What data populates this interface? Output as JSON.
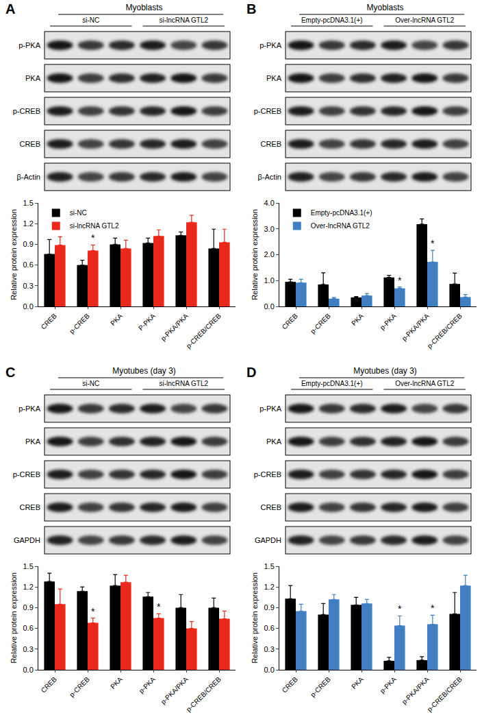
{
  "chart_data": [
    {
      "panel": "A",
      "type": "bar",
      "blot": {
        "header": "Myoblasts",
        "groups": [
          "si-NC",
          "si-lncRNA GTL2"
        ],
        "rows": [
          "p-PKA",
          "PKA",
          "p-CREB",
          "CREB",
          "β-Actin"
        ]
      },
      "y_label": "Relative protein expression",
      "categories": [
        "CREB",
        "p-CREB",
        "PKA",
        "P-PKA",
        "p-PKA/PKA",
        "p-CREB/CREB"
      ],
      "series": [
        {
          "name": "si-NC",
          "color": "#000000",
          "values": [
            0.76,
            0.6,
            0.9,
            0.92,
            1.03,
            0.84
          ],
          "errors": [
            0.21,
            0.07,
            0.09,
            0.07,
            0.05,
            0.28
          ],
          "marks": [
            null,
            null,
            null,
            null,
            null,
            null
          ]
        },
        {
          "name": "si-lncRNA GTL2",
          "color": "#e8291c",
          "values": [
            0.89,
            0.81,
            0.84,
            1.02,
            1.22,
            0.93
          ],
          "errors": [
            0.12,
            0.08,
            0.12,
            0.09,
            0.1,
            0.19
          ],
          "marks": [
            null,
            "*",
            null,
            null,
            null,
            null
          ]
        }
      ],
      "ylim": [
        0,
        1.5
      ],
      "yticks": [
        {
          "value": 0,
          "label": "0.0"
        },
        0.3,
        0.6,
        0.9,
        1.2,
        1.5
      ],
      "grid": false,
      "legend": "upper left"
    },
    {
      "panel": "B",
      "type": "bar",
      "blot": {
        "header": "Myoblasts",
        "groups": [
          "Empty-pcDNA3.1(+)",
          "Over-lncRNA GTL2"
        ],
        "rows": [
          "p-PKA",
          "PKA",
          "p-CREB",
          "CREB",
          "β-Actin"
        ]
      },
      "y_label": "Relative protein expression",
      "categories": [
        "CREB",
        "p-CREB",
        "PKA",
        "p-PKA",
        "p-PKA/PKA",
        "p-CREB/CREB"
      ],
      "series": [
        {
          "name": "Empty-pcDNA3.1(+)",
          "color": "#000000",
          "values": [
            0.95,
            0.85,
            0.35,
            1.12,
            3.18,
            0.87
          ],
          "errors": [
            0.1,
            0.45,
            0.03,
            0.08,
            0.2,
            0.42
          ],
          "marks": [
            null,
            null,
            null,
            null,
            null,
            null
          ]
        },
        {
          "name": "Over-lncRNA GTL2",
          "color": "#3f7ec1",
          "values": [
            0.92,
            0.3,
            0.42,
            0.7,
            1.72,
            0.36
          ],
          "errors": [
            0.13,
            0.05,
            0.08,
            0.05,
            0.45,
            0.1
          ],
          "marks": [
            null,
            null,
            null,
            "*",
            "*",
            null
          ]
        }
      ],
      "ylim": [
        0,
        4
      ],
      "yticks": [
        {
          "value": 0,
          "label": "0.0"
        },
        {
          "value": 1,
          "label": "1.0"
        },
        {
          "value": 2,
          "label": "2.0"
        },
        {
          "value": 3,
          "label": "3.0"
        },
        {
          "value": 4,
          "label": "4.0"
        }
      ],
      "grid": false,
      "legend": "upper left"
    },
    {
      "panel": "C",
      "type": "bar",
      "blot": {
        "header": "Myotubes (day 3)",
        "groups": [
          "si-NC",
          "si-lncRNA GTL2"
        ],
        "rows": [
          "p-PKA",
          "PKA",
          "p-CREB",
          "CREB",
          "GAPDH"
        ]
      },
      "y_label": "Relative protein expression",
      "categories": [
        "CREB",
        "p-CREB",
        "PKA",
        "p-PKA",
        "p-PKA/PKA",
        "p-CREB/CREB"
      ],
      "series": [
        {
          "color": "#000000",
          "values": [
            1.28,
            1.14,
            1.22,
            1.06,
            0.9,
            0.9
          ],
          "errors": [
            0.12,
            0.06,
            0.16,
            0.06,
            0.19,
            0.14
          ],
          "marks": [
            null,
            null,
            null,
            null,
            null,
            null
          ]
        },
        {
          "color": "#e8291c",
          "values": [
            0.95,
            0.68,
            1.27,
            0.75,
            0.6,
            0.74
          ],
          "errors": [
            0.22,
            0.07,
            0.1,
            0.06,
            0.1,
            0.11
          ],
          "marks": [
            null,
            "*",
            null,
            "*",
            null,
            null
          ]
        }
      ],
      "ylim": [
        0,
        1.5
      ],
      "yticks": [
        {
          "value": 0,
          "label": "0.0"
        },
        0.3,
        0.6,
        0.9,
        1.2,
        1.5
      ],
      "grid": false
    },
    {
      "panel": "D",
      "type": "bar",
      "blot": {
        "header": "Myotubes (day 3)",
        "groups": [
          "Empty-pcDNA3.1(+)",
          "Over-lncRNA GTL2"
        ],
        "rows": [
          "p-PKA",
          "PKA",
          "p-CREB",
          "CREB",
          "GAPDH"
        ]
      },
      "y_label": "Relative protein expression",
      "categories": [
        "CREB",
        "p-CREB",
        "PKA",
        "p-PKA",
        "p-PKA/PKA",
        "p-CREB/CREB"
      ],
      "series": [
        {
          "color": "#000000",
          "values": [
            1.03,
            0.8,
            0.94,
            0.13,
            0.14,
            0.81
          ],
          "errors": [
            0.19,
            0.16,
            0.11,
            0.05,
            0.05,
            0.31
          ],
          "marks": [
            null,
            null,
            null,
            null,
            null,
            null
          ]
        },
        {
          "color": "#3f7ec1",
          "values": [
            0.85,
            1.02,
            0.96,
            0.64,
            0.66,
            1.22
          ],
          "errors": [
            0.1,
            0.07,
            0.06,
            0.14,
            0.13,
            0.15
          ],
          "marks": [
            null,
            null,
            null,
            "*",
            "*",
            null
          ]
        }
      ],
      "ylim": [
        0,
        1.5
      ],
      "yticks": [
        {
          "value": 0,
          "label": "0.0"
        },
        0.3,
        0.6,
        0.9,
        1.2,
        1.5
      ],
      "grid": false
    }
  ]
}
